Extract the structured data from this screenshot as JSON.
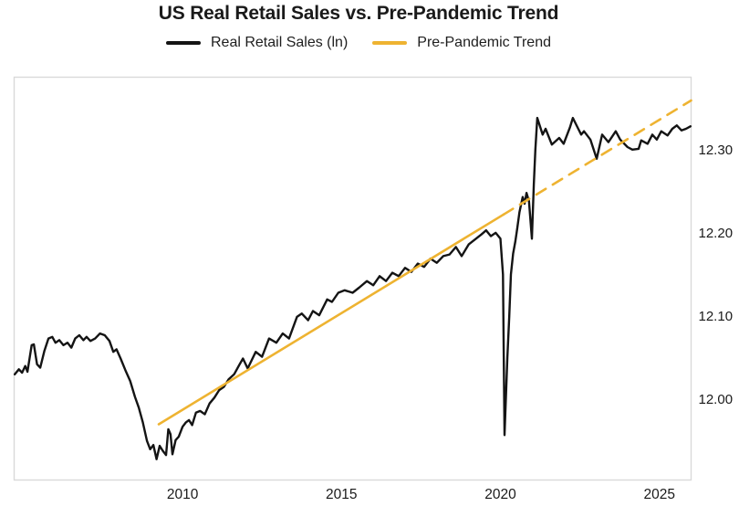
{
  "header": {
    "title": "US Real Retail Sales vs. Pre-Pandemic Trend"
  },
  "legend": {
    "items": [
      {
        "label": "Real Retail Sales (ln)",
        "color": "#141414"
      },
      {
        "label": "Pre-Pandemic Trend",
        "color": "#EEB331"
      }
    ]
  },
  "colors": {
    "series_black": "#141414",
    "trend_gold": "#EEB331",
    "plot_border": "#d9d9d9",
    "tick_text": "#1a1a1a",
    "background": "#ffffff"
  },
  "chart_data": {
    "type": "line",
    "title": "US Real Retail Sales vs. Pre-Pandemic Trend",
    "xlabel": "",
    "ylabel": "",
    "grid": false,
    "legend_position": "top",
    "y_axis_side": "right",
    "x_range": [
      2004.7,
      2026.0
    ],
    "y_range": [
      11.903,
      12.387
    ],
    "x_ticks": [
      "2010",
      "2015",
      "2020",
      "2025"
    ],
    "y_ticks": [
      "12.00",
      "12.10",
      "12.20",
      "12.30"
    ],
    "series": [
      {
        "name": "Real Retail Sales (ln)",
        "color": "#141414",
        "width": 2.4,
        "points": [
          [
            2004.72,
            12.03
          ],
          [
            2004.85,
            12.036
          ],
          [
            2004.95,
            12.032
          ],
          [
            2005.05,
            12.04
          ],
          [
            2005.12,
            12.033
          ],
          [
            2005.25,
            12.065
          ],
          [
            2005.32,
            12.066
          ],
          [
            2005.42,
            12.042
          ],
          [
            2005.52,
            12.038
          ],
          [
            2005.65,
            12.058
          ],
          [
            2005.78,
            12.073
          ],
          [
            2005.9,
            12.075
          ],
          [
            2006.0,
            12.068
          ],
          [
            2006.12,
            12.071
          ],
          [
            2006.25,
            12.065
          ],
          [
            2006.38,
            12.068
          ],
          [
            2006.5,
            12.062
          ],
          [
            2006.62,
            12.073
          ],
          [
            2006.75,
            12.077
          ],
          [
            2006.88,
            12.071
          ],
          [
            2006.98,
            12.075
          ],
          [
            2007.1,
            12.07
          ],
          [
            2007.25,
            12.073
          ],
          [
            2007.4,
            12.079
          ],
          [
            2007.55,
            12.077
          ],
          [
            2007.7,
            12.07
          ],
          [
            2007.82,
            12.057
          ],
          [
            2007.92,
            12.06
          ],
          [
            2008.05,
            12.049
          ],
          [
            2008.2,
            12.035
          ],
          [
            2008.35,
            12.022
          ],
          [
            2008.5,
            12.003
          ],
          [
            2008.62,
            11.99
          ],
          [
            2008.75,
            11.972
          ],
          [
            2008.88,
            11.95
          ],
          [
            2008.98,
            11.94
          ],
          [
            2009.08,
            11.945
          ],
          [
            2009.18,
            11.928
          ],
          [
            2009.28,
            11.944
          ],
          [
            2009.38,
            11.938
          ],
          [
            2009.48,
            11.933
          ],
          [
            2009.55,
            11.964
          ],
          [
            2009.62,
            11.958
          ],
          [
            2009.68,
            11.934
          ],
          [
            2009.78,
            11.951
          ],
          [
            2009.88,
            11.955
          ],
          [
            2010.0,
            11.967
          ],
          [
            2010.1,
            11.972
          ],
          [
            2010.2,
            11.975
          ],
          [
            2010.3,
            11.969
          ],
          [
            2010.42,
            11.984
          ],
          [
            2010.55,
            11.986
          ],
          [
            2010.7,
            11.982
          ],
          [
            2010.85,
            11.995
          ],
          [
            2011.0,
            12.002
          ],
          [
            2011.15,
            12.011
          ],
          [
            2011.3,
            12.015
          ],
          [
            2011.45,
            12.024
          ],
          [
            2011.62,
            12.03
          ],
          [
            2011.78,
            12.041
          ],
          [
            2011.9,
            12.049
          ],
          [
            2012.05,
            12.037
          ],
          [
            2012.3,
            12.057
          ],
          [
            2012.5,
            12.051
          ],
          [
            2012.72,
            12.073
          ],
          [
            2012.95,
            12.068
          ],
          [
            2013.15,
            12.079
          ],
          [
            2013.35,
            12.073
          ],
          [
            2013.6,
            12.099
          ],
          [
            2013.75,
            12.103
          ],
          [
            2013.95,
            12.095
          ],
          [
            2014.1,
            12.106
          ],
          [
            2014.3,
            12.101
          ],
          [
            2014.55,
            12.12
          ],
          [
            2014.7,
            12.117
          ],
          [
            2014.9,
            12.128
          ],
          [
            2015.1,
            12.131
          ],
          [
            2015.35,
            12.128
          ],
          [
            2015.55,
            12.134
          ],
          [
            2015.8,
            12.142
          ],
          [
            2016.0,
            12.137
          ],
          [
            2016.2,
            12.148
          ],
          [
            2016.4,
            12.142
          ],
          [
            2016.6,
            12.152
          ],
          [
            2016.8,
            12.148
          ],
          [
            2017.0,
            12.158
          ],
          [
            2017.2,
            12.153
          ],
          [
            2017.4,
            12.163
          ],
          [
            2017.6,
            12.159
          ],
          [
            2017.8,
            12.169
          ],
          [
            2018.0,
            12.164
          ],
          [
            2018.2,
            12.172
          ],
          [
            2018.4,
            12.174
          ],
          [
            2018.6,
            12.183
          ],
          [
            2018.78,
            12.172
          ],
          [
            2019.0,
            12.186
          ],
          [
            2019.2,
            12.192
          ],
          [
            2019.4,
            12.198
          ],
          [
            2019.55,
            12.203
          ],
          [
            2019.7,
            12.196
          ],
          [
            2019.85,
            12.2
          ],
          [
            2020.0,
            12.193
          ],
          [
            2020.08,
            12.15
          ],
          [
            2020.13,
            11.957
          ],
          [
            2020.22,
            12.05
          ],
          [
            2020.28,
            12.1
          ],
          [
            2020.33,
            12.15
          ],
          [
            2020.4,
            12.175
          ],
          [
            2020.47,
            12.19
          ],
          [
            2020.53,
            12.205
          ],
          [
            2020.6,
            12.225
          ],
          [
            2020.7,
            12.243
          ],
          [
            2020.76,
            12.235
          ],
          [
            2020.82,
            12.248
          ],
          [
            2020.9,
            12.238
          ],
          [
            2020.99,
            12.193
          ],
          [
            2021.05,
            12.258
          ],
          [
            2021.1,
            12.3
          ],
          [
            2021.16,
            12.338
          ],
          [
            2021.33,
            12.318
          ],
          [
            2021.42,
            12.325
          ],
          [
            2021.62,
            12.306
          ],
          [
            2021.85,
            12.314
          ],
          [
            2021.99,
            12.307
          ],
          [
            2022.19,
            12.327
          ],
          [
            2022.28,
            12.338
          ],
          [
            2022.54,
            12.318
          ],
          [
            2022.63,
            12.322
          ],
          [
            2022.83,
            12.312
          ],
          [
            2023.03,
            12.289
          ],
          [
            2023.2,
            12.318
          ],
          [
            2023.4,
            12.309
          ],
          [
            2023.63,
            12.322
          ],
          [
            2023.77,
            12.312
          ],
          [
            2024.0,
            12.303
          ],
          [
            2024.15,
            12.3
          ],
          [
            2024.35,
            12.301
          ],
          [
            2024.43,
            12.311
          ],
          [
            2024.63,
            12.307
          ],
          [
            2024.78,
            12.318
          ],
          [
            2024.92,
            12.312
          ],
          [
            2025.06,
            12.322
          ],
          [
            2025.26,
            12.317
          ],
          [
            2025.41,
            12.325
          ],
          [
            2025.55,
            12.329
          ],
          [
            2025.7,
            12.323
          ],
          [
            2025.84,
            12.325
          ],
          [
            2025.98,
            12.328
          ]
        ]
      },
      {
        "name": "Pre-Pandemic Trend",
        "color": "#EEB331",
        "width": 2.6,
        "segments": [
          {
            "dash": null,
            "points": [
              [
                2009.25,
                11.97
              ],
              [
                2020.1,
                12.222
              ]
            ]
          },
          {
            "dash": "12 9",
            "points": [
              [
                2020.1,
                12.222
              ],
              [
                2026.0,
                12.359
              ]
            ]
          }
        ]
      }
    ]
  }
}
